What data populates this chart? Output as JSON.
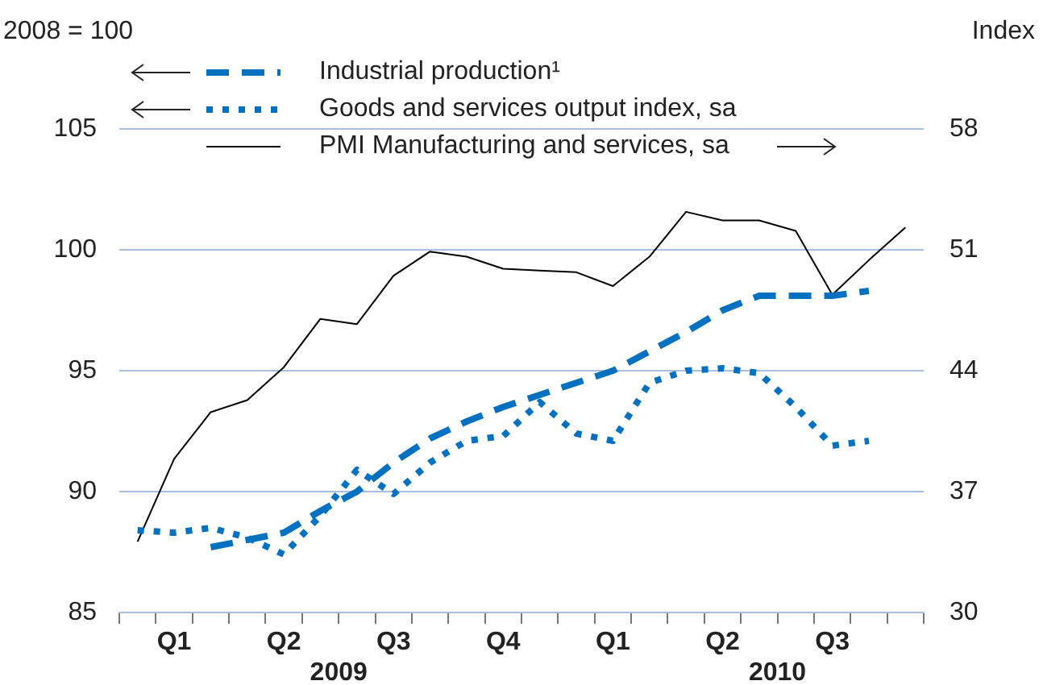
{
  "chart_data": {
    "type": "line",
    "ylabel": "2008 = 100",
    "y2label": "Index",
    "categories": [
      null,
      "Q1",
      null,
      null,
      "Q2",
      null,
      null,
      "Q3",
      null,
      null,
      "Q4",
      null,
      null,
      "Q1",
      null,
      null,
      "Q2",
      null,
      null,
      "Q3",
      null,
      null
    ],
    "annotations": [
      "2009",
      "2010"
    ],
    "ylim": [
      85,
      105
    ],
    "yticks": [
      85,
      90,
      95,
      100,
      105
    ],
    "y2lim": [
      30,
      58
    ],
    "y2ticks": [
      30,
      37,
      44,
      51,
      58
    ],
    "grid": "y",
    "legend": "top left",
    "marker": "none",
    "series": [
      {
        "name": "Industrial production¹",
        "color": "#0070c0",
        "line_style": "dashed",
        "values": [
          null,
          null,
          87.7,
          88.0,
          88.3,
          89.2,
          90.0,
          91.2,
          92.2,
          92.9,
          93.5,
          94.0,
          94.5,
          95.0,
          95.8,
          96.6,
          97.5,
          98.1,
          98.1,
          98.1,
          98.3,
          null
        ]
      },
      {
        "name": "Goods and services output index, sa",
        "color": "#0070c0",
        "line_style": "dotted",
        "values": [
          88.4,
          88.3,
          88.5,
          88.1,
          87.4,
          89.0,
          90.9,
          89.9,
          91.2,
          92.1,
          92.3,
          93.7,
          92.4,
          92.1,
          94.5,
          95.0,
          95.1,
          94.9,
          93.5,
          91.9,
          92.1,
          null
        ]
      },
      {
        "name": "PMI Manufacturing and services, sa",
        "color": "#000000",
        "line_style": "solid",
        "axis": "y2",
        "values": [
          34.1,
          38.9,
          41.6,
          42.3,
          44.2,
          47.0,
          46.7,
          49.5,
          50.9,
          50.6,
          49.9,
          49.8,
          49.7,
          48.9,
          50.6,
          53.2,
          52.7,
          52.7,
          52.1,
          48.4,
          50.4,
          52.3
        ]
      }
    ]
  }
}
